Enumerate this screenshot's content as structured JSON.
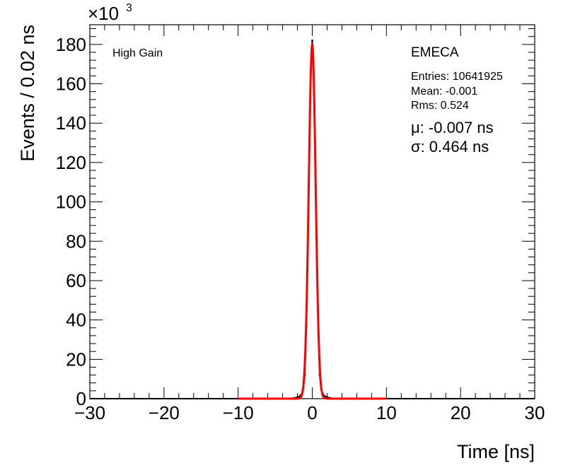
{
  "chart_data": {
    "type": "line",
    "xlabel": "Time [ns]",
    "ylabel": "Events / 0.02 ns",
    "y_multiplier": "×10",
    "y_multiplier_exp": "3",
    "xlim": [
      -30,
      30
    ],
    "ylim": [
      0,
      190
    ],
    "x_ticks": [
      -30,
      -20,
      -10,
      0,
      10,
      20,
      30
    ],
    "x_tick_labels": [
      "−30",
      "−20",
      "−10",
      "0",
      "10",
      "20",
      "30"
    ],
    "y_ticks": [
      0,
      20,
      40,
      60,
      80,
      100,
      120,
      140,
      160,
      180
    ],
    "y_tick_labels": [
      "0",
      "20",
      "40",
      "60",
      "80",
      "100",
      "120",
      "140",
      "160",
      "180"
    ],
    "grid": false,
    "annotations": {
      "gain": "High Gain",
      "detector": "EMECA",
      "entries": "Entries: 10641925",
      "mean": "Mean: -0.001",
      "rms": "Rms: 0.524",
      "mu": "μ: -0.007 ns",
      "sigma": "σ: 0.464 ns"
    },
    "series": [
      {
        "kind": "histogram",
        "color": "#000000",
        "x": [
          -3.0,
          -2.0,
          -1.6,
          -1.4,
          -1.2,
          -1.0,
          -0.8,
          -0.6,
          -0.4,
          -0.2,
          0.0,
          0.2,
          0.4,
          0.6,
          0.8,
          1.0,
          1.2,
          1.4,
          1.6,
          2.0,
          3.0
        ],
        "values": [
          0.0,
          0.7,
          1.5,
          2.6,
          5.0,
          12.0,
          37.0,
          80.0,
          127.0,
          166.0,
          182.0,
          166.0,
          127.0,
          80.0,
          37.0,
          12.0,
          5.0,
          2.6,
          1.5,
          0.7,
          0.0
        ]
      },
      {
        "kind": "gaussian_fit",
        "color": "#ff0000",
        "fit_range": [
          -10,
          10
        ],
        "amplitude": 180,
        "mean": -0.007,
        "sigma": 0.464
      }
    ]
  }
}
